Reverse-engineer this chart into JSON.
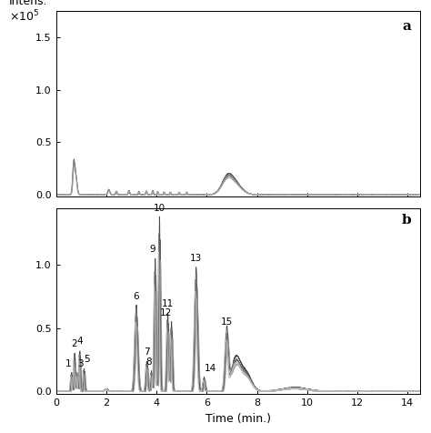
{
  "xlabel": "Time (min.)",
  "label_a": "a",
  "label_b": "b",
  "xlim": [
    0,
    14.5
  ],
  "ylim_a": [
    -0.02,
    1.75
  ],
  "ylim_b": [
    -0.02,
    1.45
  ],
  "yticks_a": [
    0.0,
    0.5,
    1.0,
    1.5
  ],
  "ytick_labels_a": [
    "0.0",
    "0.5",
    "1.0",
    "1.5"
  ],
  "yticks_b": [
    0.0,
    0.5,
    1.0
  ],
  "ytick_labels_b": [
    "0.0",
    "0.5",
    "1.0"
  ],
  "xticks": [
    0,
    2,
    4,
    6,
    8,
    10,
    12,
    14
  ],
  "background_color": "#ffffff",
  "line_width": 0.6,
  "font_size": 9,
  "tick_font_size": 8
}
